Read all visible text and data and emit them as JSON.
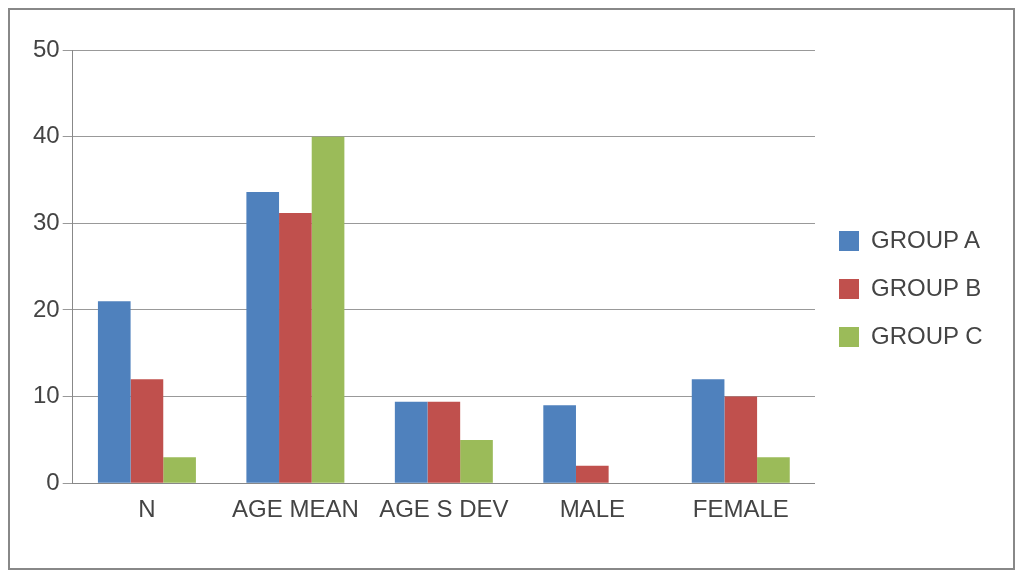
{
  "chart_data": {
    "type": "bar",
    "categories": [
      "N",
      "AGE MEAN",
      "AGE S DEV",
      "MALE",
      "FEMALE"
    ],
    "series": [
      {
        "name": "GROUP A",
        "color": "#4f81bd",
        "values": [
          21,
          33.6,
          9.4,
          9,
          12
        ]
      },
      {
        "name": "GROUP B",
        "color": "#c0504d",
        "values": [
          12,
          31.2,
          9.4,
          2,
          10
        ]
      },
      {
        "name": "GROUP C",
        "color": "#9bbb59",
        "values": [
          3,
          40,
          5,
          0,
          3
        ]
      }
    ],
    "ylim": [
      0,
      50
    ],
    "yticks": [
      0,
      10,
      20,
      30,
      40,
      50
    ],
    "grid": "y",
    "legend": "right"
  }
}
